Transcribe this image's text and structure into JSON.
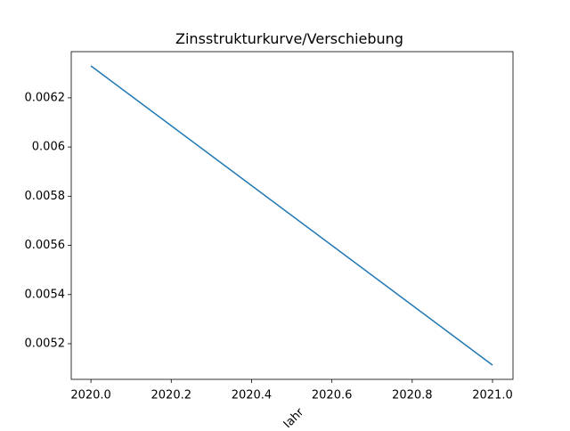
{
  "chart_data": {
    "type": "line",
    "title": "Zinsstrukturkurve/Verschiebung",
    "x_label": "Jahr",
    "x": [
      2020.0,
      2021.0
    ],
    "series": [
      {
        "color": "#1f77b4",
        "values": [
          0.00633,
          0.005113
        ]
      }
    ],
    "xlim": [
      2019.951,
      2021.051
    ],
    "xticks": [
      {
        "value": 2020.0,
        "label": "2020.0"
      },
      {
        "value": 2020.2,
        "label": "2020.2"
      },
      {
        "value": 2020.4,
        "label": "2020.4"
      },
      {
        "value": 2020.6,
        "label": "2020.6"
      },
      {
        "value": 2020.8,
        "label": "2020.8"
      },
      {
        "value": 2021.0,
        "label": "2021.0"
      }
    ],
    "ylim": [
      0.005055,
      0.006388
    ],
    "yticks": [
      0.0052,
      0.0054,
      0.0056,
      0.0058,
      0.006,
      0.0062
    ],
    "grid": false
  }
}
